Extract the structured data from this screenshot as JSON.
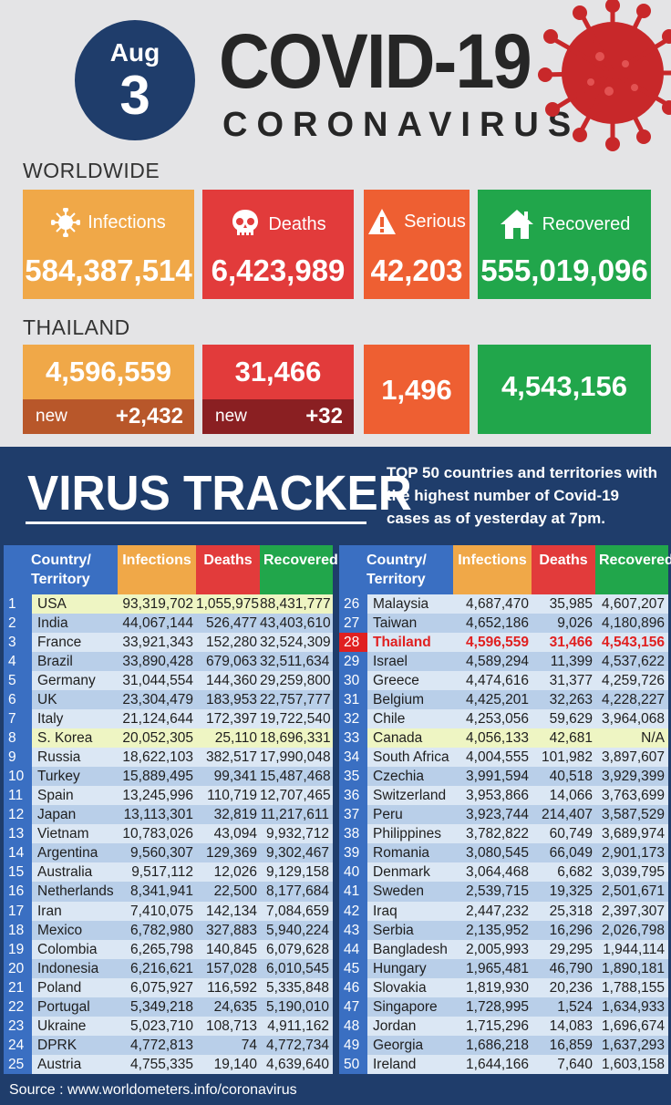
{
  "header": {
    "month": "Aug",
    "day": "3",
    "title": "COVID-19",
    "subtitle": "CORONAVIRUS"
  },
  "worldwide": {
    "label": "WORLDWIDE",
    "infections_label": "Infections",
    "infections": "584,387,514",
    "deaths_label": "Deaths",
    "deaths": "6,423,989",
    "serious_label": "Serious",
    "serious": "42,203",
    "recovered_label": "Recovered",
    "recovered": "555,019,096"
  },
  "thailand": {
    "label": "THAILAND",
    "infections": "4,596,559",
    "infections_new_label": "new",
    "infections_new": "+2,432",
    "deaths": "31,466",
    "deaths_new_label": "new",
    "deaths_new": "+32",
    "serious": "1,496",
    "recovered": "4,543,156"
  },
  "tracker": {
    "title": "VIRUS TRACKER",
    "desc_bold": "TOP 50",
    "desc_rest": " countries and territories with the highest number of Covid-19 cases as of yesterday at 7pm.",
    "col_country": "Country/ Territory",
    "col_infections": "Infections",
    "col_deaths": "Deaths",
    "col_recovered": "Recovered"
  },
  "rows_left": [
    [
      "1",
      "USA",
      "93,319,702",
      "1,055,975",
      "88,431,777"
    ],
    [
      "2",
      "India",
      "44,067,144",
      "526,477",
      "43,403,610"
    ],
    [
      "3",
      "France",
      "33,921,343",
      "152,280",
      "32,524,309"
    ],
    [
      "4",
      "Brazil",
      "33,890,428",
      "679,063",
      "32,511,634"
    ],
    [
      "5",
      "Germany",
      "31,044,554",
      "144,360",
      "29,259,800"
    ],
    [
      "6",
      "UK",
      "23,304,479",
      "183,953",
      "22,757,777"
    ],
    [
      "7",
      "Italy",
      "21,124,644",
      "172,397",
      "19,722,540"
    ],
    [
      "8",
      "S. Korea",
      "20,052,305",
      "25,110",
      "18,696,331"
    ],
    [
      "9",
      "Russia",
      "18,622,103",
      "382,517",
      "17,990,048"
    ],
    [
      "10",
      "Turkey",
      "15,889,495",
      "99,341",
      "15,487,468"
    ],
    [
      "11",
      "Spain",
      "13,245,996",
      "110,719",
      "12,707,465"
    ],
    [
      "12",
      "Japan",
      "13,113,301",
      "32,819",
      "11,217,611"
    ],
    [
      "13",
      "Vietnam",
      "10,783,026",
      "43,094",
      "9,932,712"
    ],
    [
      "14",
      "Argentina",
      "9,560,307",
      "129,369",
      "9,302,467"
    ],
    [
      "15",
      "Australia",
      "9,517,112",
      "12,026",
      "9,129,158"
    ],
    [
      "16",
      "Netherlands",
      "8,341,941",
      "22,500",
      "8,177,684"
    ],
    [
      "17",
      "Iran",
      "7,410,075",
      "142,134",
      "7,084,659"
    ],
    [
      "18",
      "Mexico",
      "6,782,980",
      "327,883",
      "5,940,224"
    ],
    [
      "19",
      "Colombia",
      "6,265,798",
      "140,845",
      "6,079,628"
    ],
    [
      "20",
      "Indonesia",
      "6,216,621",
      "157,028",
      "6,010,545"
    ],
    [
      "21",
      "Poland",
      "6,075,927",
      "116,592",
      "5,335,848"
    ],
    [
      "22",
      "Portugal",
      "5,349,218",
      "24,635",
      "5,190,010"
    ],
    [
      "23",
      "Ukraine",
      "5,023,710",
      "108,713",
      "4,911,162"
    ],
    [
      "24",
      "DPRK",
      "4,772,813",
      "74",
      "4,772,734"
    ],
    [
      "25",
      "Austria",
      "4,755,335",
      "19,140",
      "4,639,640"
    ]
  ],
  "rows_right": [
    [
      "26",
      "Malaysia",
      "4,687,470",
      "35,985",
      "4,607,207"
    ],
    [
      "27",
      "Taiwan",
      "4,652,186",
      "9,026",
      "4,180,896"
    ],
    [
      "28",
      "Thailand",
      "4,596,559",
      "31,466",
      "4,543,156"
    ],
    [
      "29",
      "Israel",
      "4,589,294",
      "11,399",
      "4,537,622"
    ],
    [
      "30",
      "Greece",
      "4,474,616",
      "31,377",
      "4,259,726"
    ],
    [
      "31",
      "Belgium",
      "4,425,201",
      "32,263",
      "4,228,227"
    ],
    [
      "32",
      "Chile",
      "4,253,056",
      "59,629",
      "3,964,068"
    ],
    [
      "33",
      "Canada",
      "4,056,133",
      "42,681",
      "N/A"
    ],
    [
      "34",
      "South Africa",
      "4,004,555",
      "101,982",
      "3,897,607"
    ],
    [
      "35",
      "Czechia",
      "3,991,594",
      "40,518",
      "3,929,399"
    ],
    [
      "36",
      "Switzerland",
      "3,953,866",
      "14,066",
      "3,763,699"
    ],
    [
      "37",
      "Peru",
      "3,923,744",
      "214,407",
      "3,587,529"
    ],
    [
      "38",
      "Philippines",
      "3,782,822",
      "60,749",
      "3,689,974"
    ],
    [
      "39",
      "Romania",
      "3,080,545",
      "66,049",
      "2,901,173"
    ],
    [
      "40",
      "Denmark",
      "3,064,468",
      "6,682",
      "3,039,795"
    ],
    [
      "41",
      "Sweden",
      "2,539,715",
      "19,325",
      "2,501,671"
    ],
    [
      "42",
      "Iraq",
      "2,447,232",
      "25,318",
      "2,397,307"
    ],
    [
      "43",
      "Serbia",
      "2,135,952",
      "16,296",
      "2,026,798"
    ],
    [
      "44",
      "Bangladesh",
      "2,005,993",
      "29,295",
      "1,944,114"
    ],
    [
      "45",
      "Hungary",
      "1,965,481",
      "46,790",
      "1,890,181"
    ],
    [
      "46",
      "Slovakia",
      "1,819,930",
      "20,236",
      "1,788,155"
    ],
    [
      "47",
      "Singapore",
      "1,728,995",
      "1,524",
      "1,634,933"
    ],
    [
      "48",
      "Jordan",
      "1,715,296",
      "14,083",
      "1,696,674"
    ],
    [
      "49",
      "Georgia",
      "1,686,218",
      "16,859",
      "1,637,293"
    ],
    [
      "50",
      "Ireland",
      "1,644,166",
      "7,640",
      "1,603,158"
    ]
  ],
  "highlight_rows": [
    "1",
    "8",
    "33"
  ],
  "red_rows": [
    "28"
  ],
  "source": "Source : www.worldometers.info/coronavirus",
  "colors": {
    "navy": "#1f3d6b",
    "infections": "#f0a848",
    "deaths": "#e23b3b",
    "serious": "#ee5f32",
    "recovered": "#21a64b"
  }
}
